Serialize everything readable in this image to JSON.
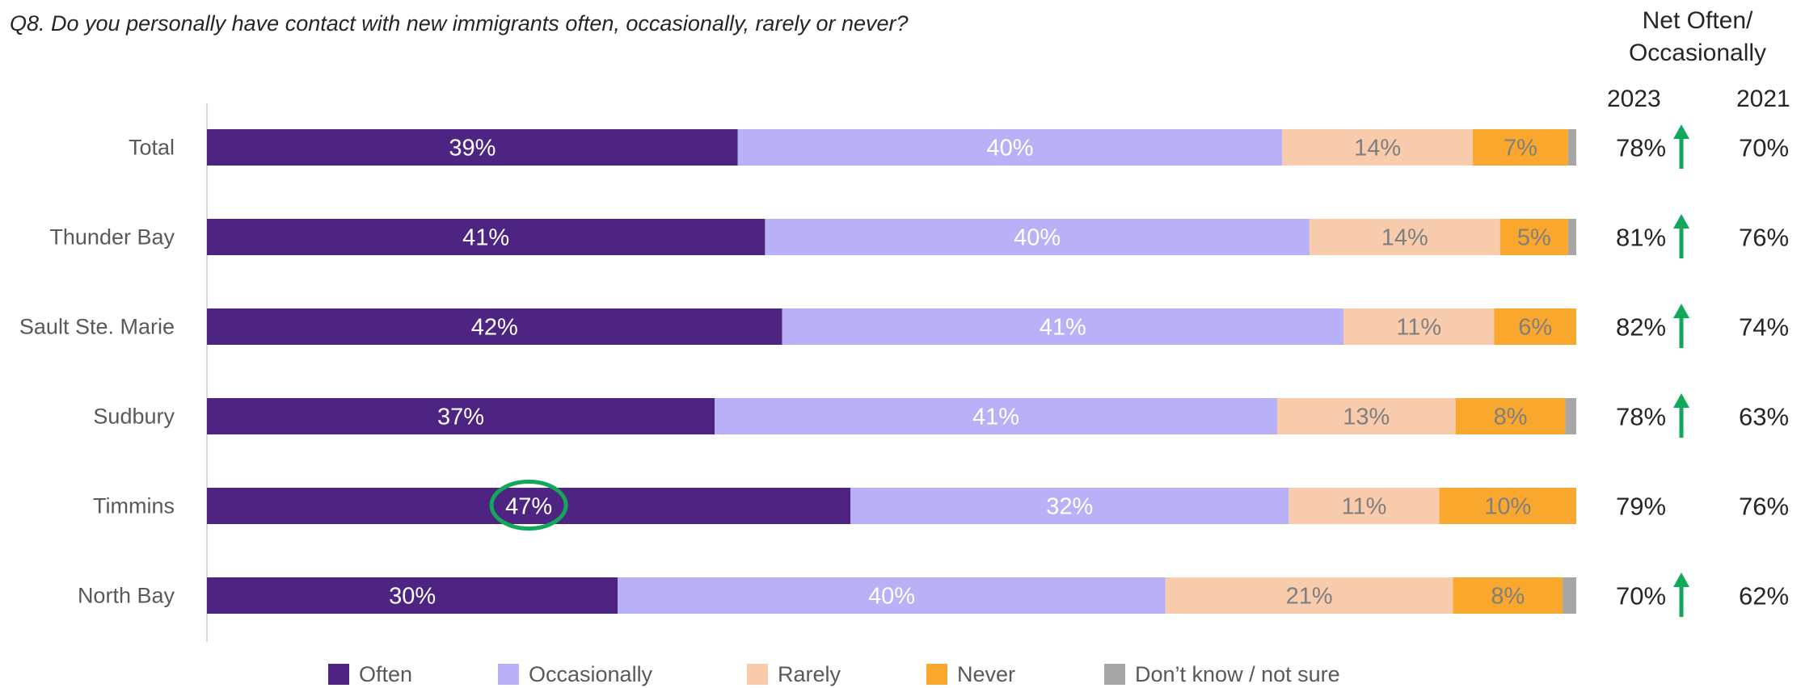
{
  "question": "Q8. Do you personally have contact with new immigrants often, occasionally, rarely or never?",
  "net_header": {
    "line1": "Net Often/",
    "line2": "Occasionally",
    "year_2023": "2023",
    "year_2021": "2021"
  },
  "colors": {
    "often": "#4e2483",
    "occasionally": "#b8b1f7",
    "rarely": "#f8cbad",
    "never": "#f9a82d",
    "dont_know": "#a6a6a6",
    "up_arrow": "#12a85a",
    "highlight_circle": "#12a85a"
  },
  "chart_data": {
    "type": "bar",
    "orientation": "horizontal",
    "stacked": true,
    "categories": [
      "Total",
      "Thunder Bay",
      "Sault Ste. Marie",
      "Sudbury",
      "Timmins",
      "North Bay"
    ],
    "series": [
      {
        "name": "Often",
        "values": [
          39,
          41,
          42,
          37,
          47,
          30
        ],
        "labels": [
          "39%",
          "41%",
          "42%",
          "37%",
          "47%",
          "30%"
        ]
      },
      {
        "name": "Occasionally",
        "values": [
          40,
          40,
          41,
          41,
          32,
          40
        ],
        "labels": [
          "40%",
          "40%",
          "41%",
          "41%",
          "32%",
          "40%"
        ]
      },
      {
        "name": "Rarely",
        "values": [
          14,
          14,
          11,
          13,
          11,
          21
        ],
        "labels": [
          "14%",
          "14%",
          "11%",
          "13%",
          "11%",
          "21%"
        ]
      },
      {
        "name": "Never",
        "values": [
          7,
          5,
          6,
          8,
          10,
          8
        ],
        "labels": [
          "7%",
          "5%",
          "6%",
          "8%",
          "10%",
          "8%"
        ]
      },
      {
        "name": "Don't know / not sure",
        "values": [
          0.6,
          0.6,
          0,
          0.8,
          0,
          1
        ],
        "labels": [
          "",
          "",
          "",
          "",
          "",
          ""
        ]
      }
    ],
    "xlim": [
      0,
      100
    ],
    "legend_position": "bottom",
    "legend": [
      "Often",
      "Occasionally",
      "Rarely",
      "Never",
      "Don’t know / not sure"
    ],
    "highlight": {
      "category": "Timmins",
      "series": "Often"
    },
    "net_2023": [
      "78%",
      "81%",
      "82%",
      "78%",
      "79%",
      "70%"
    ],
    "net_2023_up": [
      true,
      true,
      true,
      true,
      false,
      true
    ],
    "net_2021": [
      "70%",
      "76%",
      "74%",
      "63%",
      "76%",
      "62%"
    ]
  }
}
